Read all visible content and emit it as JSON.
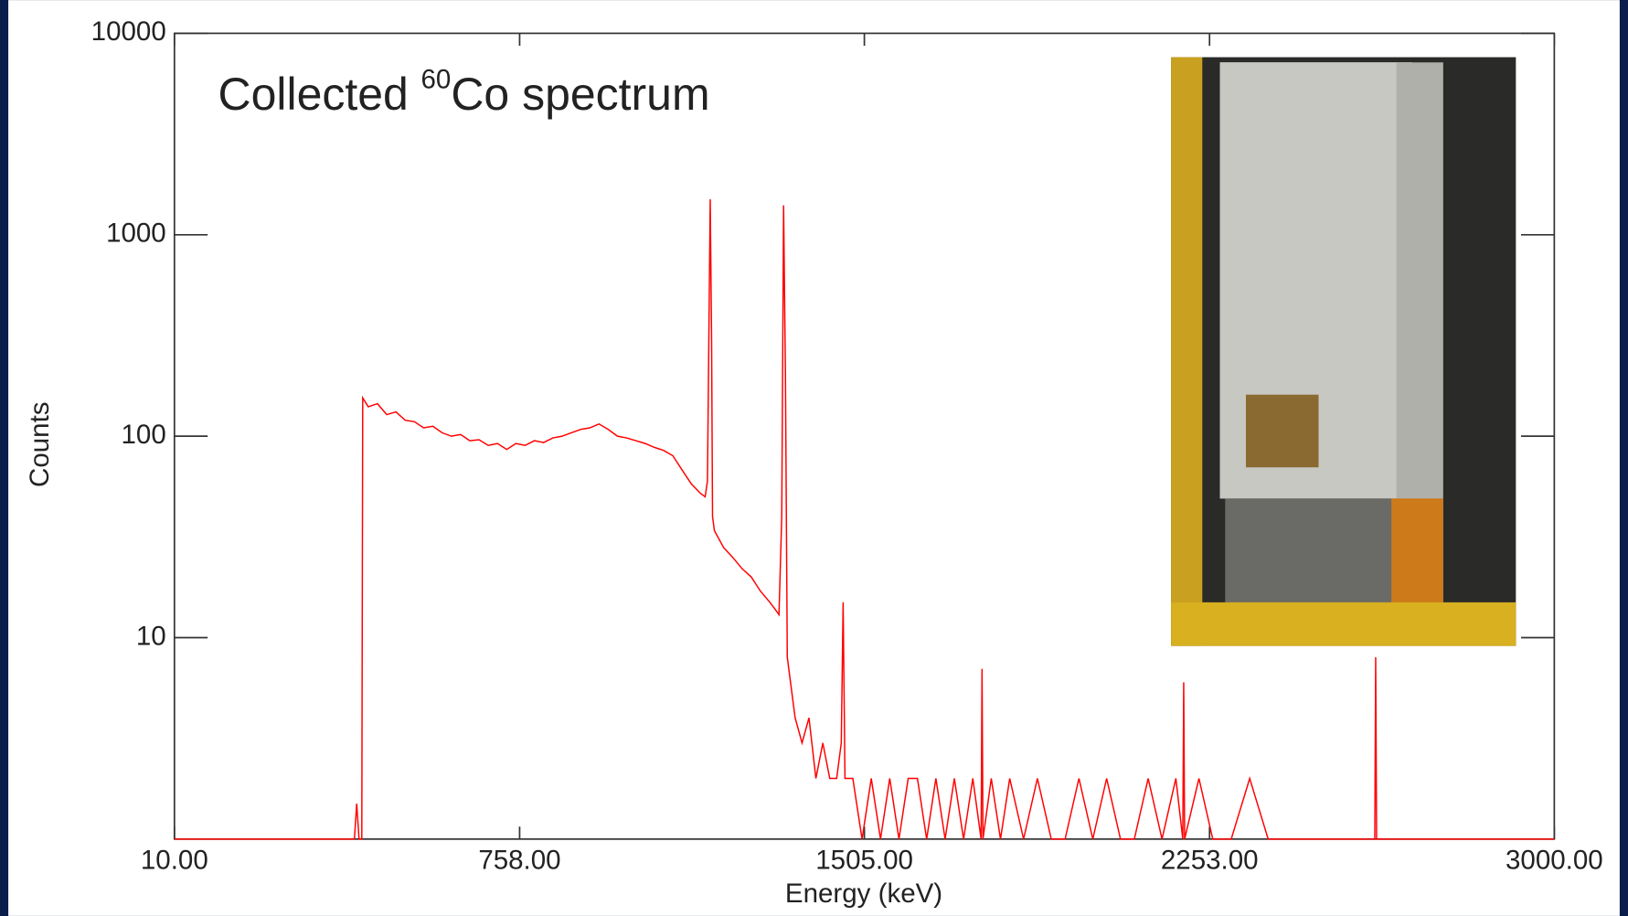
{
  "chart_data": {
    "type": "line",
    "title_parts": [
      "Collected",
      "60",
      "Co spectrum"
    ],
    "x_label": "Energy (keV)",
    "y_label": "Counts",
    "log_y": true,
    "xlim": [
      10,
      3000
    ],
    "xticks": [
      {
        "value": 10,
        "label": "10.00"
      },
      {
        "value": 758,
        "label": "758.00"
      },
      {
        "value": 1505,
        "label": "1505.00"
      },
      {
        "value": 2253,
        "label": "2253.00"
      },
      {
        "value": 3000,
        "label": "3000.00"
      }
    ],
    "ylim": [
      1,
      10000
    ],
    "yticks": [
      10,
      100,
      1000,
      10000
    ],
    "series": [
      {
        "name": "Counts",
        "color": "#ff0000",
        "x": [
          10,
          400,
          405,
          410,
          416,
          418,
          430,
          450,
          470,
          490,
          510,
          530,
          550,
          570,
          590,
          610,
          630,
          650,
          670,
          690,
          710,
          730,
          750,
          770,
          790,
          810,
          830,
          850,
          870,
          890,
          910,
          930,
          950,
          970,
          990,
          1010,
          1030,
          1050,
          1070,
          1090,
          1110,
          1130,
          1150,
          1160,
          1165,
          1168,
          1171,
          1174,
          1176,
          1180,
          1200,
          1220,
          1240,
          1260,
          1280,
          1300,
          1310,
          1320,
          1326,
          1330,
          1334,
          1338,
          1345,
          1355,
          1370,
          1385,
          1400,
          1415,
          1430,
          1445,
          1455,
          1459,
          1463,
          1480,
          1500,
          1520,
          1540,
          1560,
          1580,
          1600,
          1620,
          1640,
          1660,
          1680,
          1700,
          1720,
          1740,
          1758,
          1760,
          1762,
          1780,
          1800,
          1820,
          1850,
          1880,
          1910,
          1940,
          1970,
          2000,
          2030,
          2060,
          2090,
          2120,
          2150,
          2180,
          2195,
          2197,
          2199,
          2230,
          2260,
          2300,
          2340,
          2380,
          2420,
          2460,
          2500,
          2540,
          2580,
          2611,
          2613,
          2615,
          2650,
          2700,
          2750,
          2800,
          2850,
          2900,
          2950,
          3000
        ],
        "values": [
          1,
          1,
          1.5,
          1,
          1,
          155,
          140,
          145,
          128,
          132,
          120,
          118,
          110,
          112,
          104,
          100,
          102,
          95,
          96,
          90,
          92,
          86,
          92,
          90,
          95,
          93,
          98,
          100,
          104,
          108,
          110,
          115,
          108,
          100,
          98,
          95,
          92,
          88,
          85,
          80,
          68,
          58,
          52,
          50,
          60,
          300,
          1500,
          300,
          40,
          34,
          28,
          25,
          22,
          20,
          17,
          15,
          14,
          13,
          40,
          1400,
          200,
          8,
          6,
          4,
          3,
          4,
          2,
          3,
          2,
          2,
          3,
          15,
          2,
          2,
          1,
          2,
          1,
          2,
          1,
          2,
          2,
          1,
          2,
          1,
          2,
          1,
          2,
          1,
          7,
          1,
          2,
          1,
          2,
          1,
          2,
          1,
          1,
          2,
          1,
          2,
          1,
          1,
          2,
          1,
          2,
          1,
          6,
          1,
          2,
          1,
          1,
          2,
          1,
          1,
          1,
          1,
          1,
          1,
          1,
          8,
          1,
          1,
          1,
          1,
          1,
          1,
          1,
          1,
          1
        ]
      }
    ]
  }
}
